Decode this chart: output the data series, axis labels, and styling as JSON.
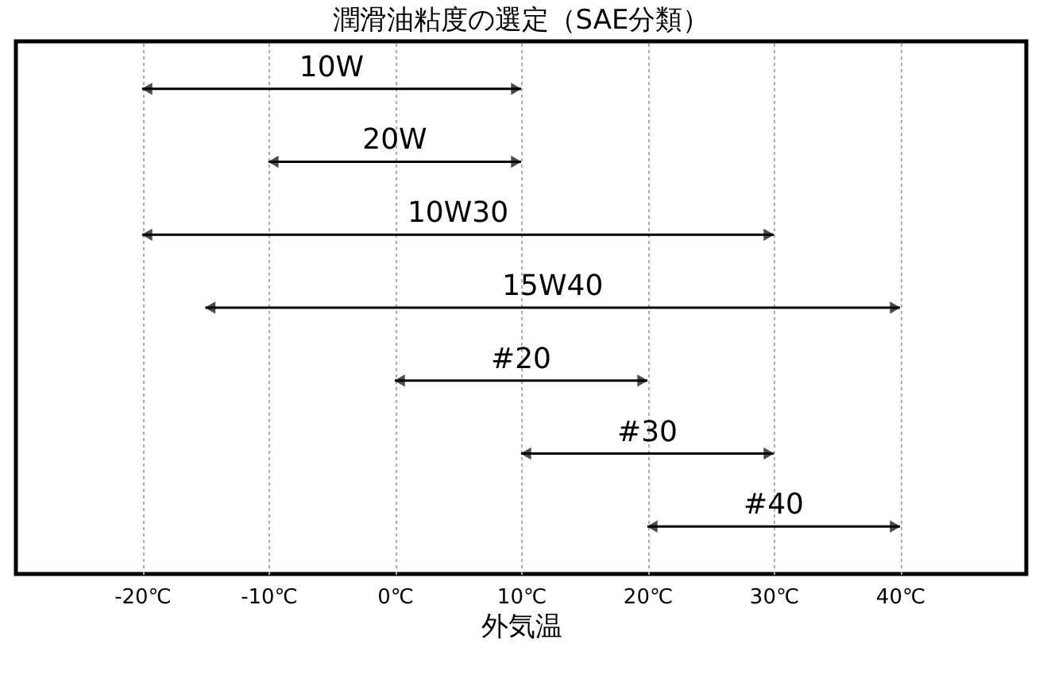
{
  "chart_data": {
    "type": "bar",
    "orientation": "horizontal",
    "title": "潤滑油粘度の選定（SAE分類）",
    "xlabel": "外気温",
    "categories": [
      "10W",
      "20W",
      "10W30",
      "15W40",
      "#20",
      "#30",
      "#40"
    ],
    "base": [
      -20,
      -10,
      -20,
      -15,
      0,
      10,
      20
    ],
    "values": [
      30,
      20,
      50,
      55,
      20,
      20,
      20
    ],
    "color": "#000000",
    "xlim": [
      -30,
      50
    ],
    "xticks": [
      {
        "value": -20,
        "label": "-20℃"
      },
      {
        "value": -10,
        "label": "-10℃"
      },
      {
        "value": 0,
        "label": "0℃"
      },
      {
        "value": 10,
        "label": "10℃"
      },
      {
        "value": 20,
        "label": "20℃"
      },
      {
        "value": 30,
        "label": "30℃"
      },
      {
        "value": 40,
        "label": "40℃"
      }
    ],
    "grid": "x",
    "tick_labels": "x"
  }
}
